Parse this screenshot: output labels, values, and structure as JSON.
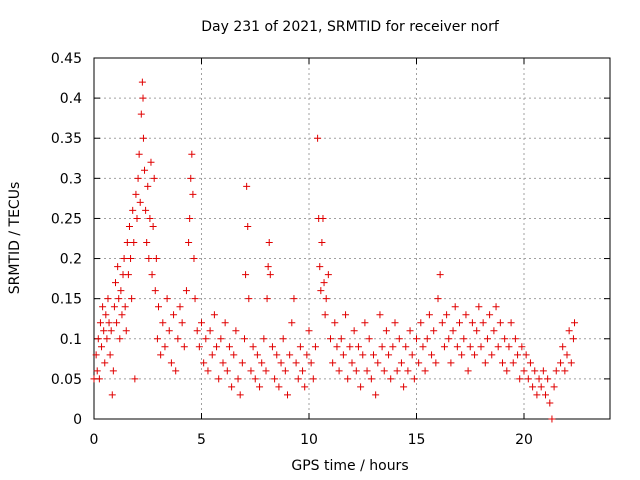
{
  "chart_data": {
    "type": "scatter",
    "title": "Day 231 of 2021, SRMTID for receiver norf",
    "xlabel": "GPS time / hours",
    "ylabel": "SRMTID / TECUs",
    "xlim": [
      0,
      24
    ],
    "ylim": [
      0,
      0.45
    ],
    "x_ticks": [
      0,
      5,
      10,
      15,
      20
    ],
    "y_ticks": [
      0,
      0.05,
      0.1,
      0.15,
      0.2,
      0.25,
      0.3,
      0.35,
      0.4,
      0.45
    ],
    "x_tick_labels": [
      "0",
      "5",
      "10",
      "15",
      "20"
    ],
    "y_tick_labels": [
      "0",
      "0.05",
      "0.1",
      "0.15",
      "0.2",
      "0.25",
      "0.3",
      "0.35",
      "0.4",
      "0.45"
    ],
    "grid": true,
    "marker": "plus",
    "color": "#e00000",
    "series": [
      {
        "points": [
          [
            0.0,
            0.05
          ],
          [
            0.1,
            0.08
          ],
          [
            0.15,
            0.06
          ],
          [
            0.2,
            0.1
          ],
          [
            0.25,
            0.05
          ],
          [
            0.3,
            0.12
          ],
          [
            0.35,
            0.09
          ],
          [
            0.4,
            0.14
          ],
          [
            0.45,
            0.11
          ],
          [
            0.5,
            0.07
          ],
          [
            0.55,
            0.13
          ],
          [
            0.6,
            0.1
          ],
          [
            0.65,
            0.15
          ],
          [
            0.7,
            0.12
          ],
          [
            0.75,
            0.08
          ],
          [
            0.8,
            0.11
          ],
          [
            0.85,
            0.03
          ],
          [
            0.9,
            0.06
          ],
          [
            0.95,
            0.14
          ],
          [
            1.0,
            0.17
          ],
          [
            1.05,
            0.12
          ],
          [
            1.1,
            0.19
          ],
          [
            1.15,
            0.15
          ],
          [
            1.2,
            0.1
          ],
          [
            1.25,
            0.16
          ],
          [
            1.3,
            0.13
          ],
          [
            1.35,
            0.18
          ],
          [
            1.4,
            0.2
          ],
          [
            1.45,
            0.14
          ],
          [
            1.5,
            0.11
          ],
          [
            1.55,
            0.22
          ],
          [
            1.6,
            0.18
          ],
          [
            1.65,
            0.24
          ],
          [
            1.7,
            0.2
          ],
          [
            1.75,
            0.15
          ],
          [
            1.8,
            0.26
          ],
          [
            1.85,
            0.22
          ],
          [
            1.9,
            0.05
          ],
          [
            1.95,
            0.28
          ],
          [
            2.0,
            0.25
          ],
          [
            2.05,
            0.3
          ],
          [
            2.1,
            0.33
          ],
          [
            2.15,
            0.27
          ],
          [
            2.2,
            0.38
          ],
          [
            2.25,
            0.42
          ],
          [
            2.28,
            0.4
          ],
          [
            2.3,
            0.35
          ],
          [
            2.35,
            0.31
          ],
          [
            2.4,
            0.26
          ],
          [
            2.45,
            0.22
          ],
          [
            2.5,
            0.29
          ],
          [
            2.55,
            0.2
          ],
          [
            2.6,
            0.25
          ],
          [
            2.65,
            0.32
          ],
          [
            2.7,
            0.18
          ],
          [
            2.75,
            0.24
          ],
          [
            2.8,
            0.3
          ],
          [
            2.85,
            0.16
          ],
          [
            2.9,
            0.2
          ],
          [
            2.95,
            0.1
          ],
          [
            3.0,
            0.14
          ],
          [
            3.1,
            0.08
          ],
          [
            3.2,
            0.12
          ],
          [
            3.3,
            0.09
          ],
          [
            3.4,
            0.15
          ],
          [
            3.5,
            0.11
          ],
          [
            3.6,
            0.07
          ],
          [
            3.7,
            0.13
          ],
          [
            3.8,
            0.06
          ],
          [
            3.9,
            0.1
          ],
          [
            4.0,
            0.14
          ],
          [
            4.1,
            0.12
          ],
          [
            4.2,
            0.09
          ],
          [
            4.3,
            0.16
          ],
          [
            4.4,
            0.22
          ],
          [
            4.45,
            0.25
          ],
          [
            4.5,
            0.3
          ],
          [
            4.55,
            0.33
          ],
          [
            4.6,
            0.28
          ],
          [
            4.65,
            0.2
          ],
          [
            4.7,
            0.15
          ],
          [
            4.8,
            0.11
          ],
          [
            4.9,
            0.09
          ],
          [
            5.0,
            0.12
          ],
          [
            5.1,
            0.07
          ],
          [
            5.2,
            0.1
          ],
          [
            5.3,
            0.06
          ],
          [
            5.4,
            0.11
          ],
          [
            5.5,
            0.08
          ],
          [
            5.6,
            0.13
          ],
          [
            5.7,
            0.09
          ],
          [
            5.8,
            0.05
          ],
          [
            5.9,
            0.1
          ],
          [
            6.0,
            0.07
          ],
          [
            6.1,
            0.12
          ],
          [
            6.2,
            0.06
          ],
          [
            6.3,
            0.09
          ],
          [
            6.4,
            0.04
          ],
          [
            6.5,
            0.08
          ],
          [
            6.6,
            0.11
          ],
          [
            6.7,
            0.05
          ],
          [
            6.8,
            0.03
          ],
          [
            6.9,
            0.07
          ],
          [
            7.0,
            0.1
          ],
          [
            7.05,
            0.18
          ],
          [
            7.1,
            0.29
          ],
          [
            7.15,
            0.24
          ],
          [
            7.2,
            0.15
          ],
          [
            7.3,
            0.06
          ],
          [
            7.4,
            0.09
          ],
          [
            7.5,
            0.05
          ],
          [
            7.6,
            0.08
          ],
          [
            7.7,
            0.04
          ],
          [
            7.8,
            0.07
          ],
          [
            7.9,
            0.1
          ],
          [
            8.0,
            0.06
          ],
          [
            8.05,
            0.15
          ],
          [
            8.1,
            0.19
          ],
          [
            8.15,
            0.22
          ],
          [
            8.2,
            0.18
          ],
          [
            8.3,
            0.09
          ],
          [
            8.4,
            0.05
          ],
          [
            8.5,
            0.08
          ],
          [
            8.6,
            0.04
          ],
          [
            8.7,
            0.07
          ],
          [
            8.8,
            0.1
          ],
          [
            8.9,
            0.06
          ],
          [
            9.0,
            0.03
          ],
          [
            9.1,
            0.08
          ],
          [
            9.2,
            0.12
          ],
          [
            9.3,
            0.15
          ],
          [
            9.4,
            0.07
          ],
          [
            9.5,
            0.05
          ],
          [
            9.6,
            0.09
          ],
          [
            9.7,
            0.06
          ],
          [
            9.8,
            0.04
          ],
          [
            9.9,
            0.08
          ],
          [
            10.0,
            0.11
          ],
          [
            10.1,
            0.07
          ],
          [
            10.2,
            0.05
          ],
          [
            10.3,
            0.09
          ],
          [
            10.4,
            0.35
          ],
          [
            10.45,
            0.25
          ],
          [
            10.5,
            0.19
          ],
          [
            10.55,
            0.16
          ],
          [
            10.6,
            0.22
          ],
          [
            10.65,
            0.25
          ],
          [
            10.7,
            0.17
          ],
          [
            10.75,
            0.13
          ],
          [
            10.8,
            0.15
          ],
          [
            10.9,
            0.18
          ],
          [
            11.0,
            0.1
          ],
          [
            11.1,
            0.07
          ],
          [
            11.2,
            0.12
          ],
          [
            11.3,
            0.09
          ],
          [
            11.4,
            0.06
          ],
          [
            11.5,
            0.1
          ],
          [
            11.6,
            0.08
          ],
          [
            11.7,
            0.13
          ],
          [
            11.8,
            0.05
          ],
          [
            11.9,
            0.09
          ],
          [
            12.0,
            0.07
          ],
          [
            12.1,
            0.11
          ],
          [
            12.2,
            0.06
          ],
          [
            12.3,
            0.09
          ],
          [
            12.4,
            0.04
          ],
          [
            12.5,
            0.08
          ],
          [
            12.6,
            0.12
          ],
          [
            12.7,
            0.06
          ],
          [
            12.8,
            0.1
          ],
          [
            12.9,
            0.05
          ],
          [
            13.0,
            0.08
          ],
          [
            13.1,
            0.03
          ],
          [
            13.2,
            0.07
          ],
          [
            13.3,
            0.13
          ],
          [
            13.4,
            0.09
          ],
          [
            13.5,
            0.06
          ],
          [
            13.6,
            0.11
          ],
          [
            13.7,
            0.08
          ],
          [
            13.8,
            0.05
          ],
          [
            13.9,
            0.09
          ],
          [
            14.0,
            0.12
          ],
          [
            14.1,
            0.06
          ],
          [
            14.2,
            0.1
          ],
          [
            14.3,
            0.07
          ],
          [
            14.4,
            0.04
          ],
          [
            14.5,
            0.09
          ],
          [
            14.6,
            0.06
          ],
          [
            14.7,
            0.11
          ],
          [
            14.8,
            0.08
          ],
          [
            14.9,
            0.05
          ],
          [
            15.0,
            0.1
          ],
          [
            15.1,
            0.07
          ],
          [
            15.2,
            0.12
          ],
          [
            15.3,
            0.09
          ],
          [
            15.4,
            0.06
          ],
          [
            15.5,
            0.1
          ],
          [
            15.6,
            0.13
          ],
          [
            15.7,
            0.08
          ],
          [
            15.8,
            0.11
          ],
          [
            15.9,
            0.07
          ],
          [
            16.0,
            0.15
          ],
          [
            16.1,
            0.18
          ],
          [
            16.2,
            0.12
          ],
          [
            16.3,
            0.09
          ],
          [
            16.4,
            0.13
          ],
          [
            16.5,
            0.1
          ],
          [
            16.6,
            0.07
          ],
          [
            16.7,
            0.11
          ],
          [
            16.8,
            0.14
          ],
          [
            16.9,
            0.09
          ],
          [
            17.0,
            0.12
          ],
          [
            17.1,
            0.08
          ],
          [
            17.2,
            0.1
          ],
          [
            17.3,
            0.13
          ],
          [
            17.4,
            0.06
          ],
          [
            17.5,
            0.09
          ],
          [
            17.6,
            0.12
          ],
          [
            17.7,
            0.08
          ],
          [
            17.8,
            0.11
          ],
          [
            17.9,
            0.14
          ],
          [
            18.0,
            0.09
          ],
          [
            18.1,
            0.12
          ],
          [
            18.2,
            0.07
          ],
          [
            18.3,
            0.1
          ],
          [
            18.4,
            0.13
          ],
          [
            18.5,
            0.08
          ],
          [
            18.6,
            0.11
          ],
          [
            18.7,
            0.14
          ],
          [
            18.8,
            0.09
          ],
          [
            18.9,
            0.12
          ],
          [
            19.0,
            0.07
          ],
          [
            19.1,
            0.1
          ],
          [
            19.2,
            0.06
          ],
          [
            19.3,
            0.09
          ],
          [
            19.4,
            0.12
          ],
          [
            19.5,
            0.07
          ],
          [
            19.6,
            0.1
          ],
          [
            19.7,
            0.08
          ],
          [
            19.8,
            0.05
          ],
          [
            19.9,
            0.09
          ],
          [
            20.0,
            0.06
          ],
          [
            20.1,
            0.08
          ],
          [
            20.2,
            0.05
          ],
          [
            20.3,
            0.07
          ],
          [
            20.4,
            0.04
          ],
          [
            20.5,
            0.06
          ],
          [
            20.6,
            0.03
          ],
          [
            20.7,
            0.05
          ],
          [
            20.8,
            0.04
          ],
          [
            20.9,
            0.06
          ],
          [
            21.0,
            0.03
          ],
          [
            21.1,
            0.05
          ],
          [
            21.2,
            0.02
          ],
          [
            21.3,
            0.0
          ],
          [
            21.4,
            0.04
          ],
          [
            21.5,
            0.06
          ],
          [
            21.7,
            0.07
          ],
          [
            21.8,
            0.09
          ],
          [
            21.9,
            0.06
          ],
          [
            22.0,
            0.08
          ],
          [
            22.1,
            0.11
          ],
          [
            22.2,
            0.07
          ],
          [
            22.3,
            0.1
          ],
          [
            22.35,
            0.12
          ]
        ]
      }
    ]
  }
}
